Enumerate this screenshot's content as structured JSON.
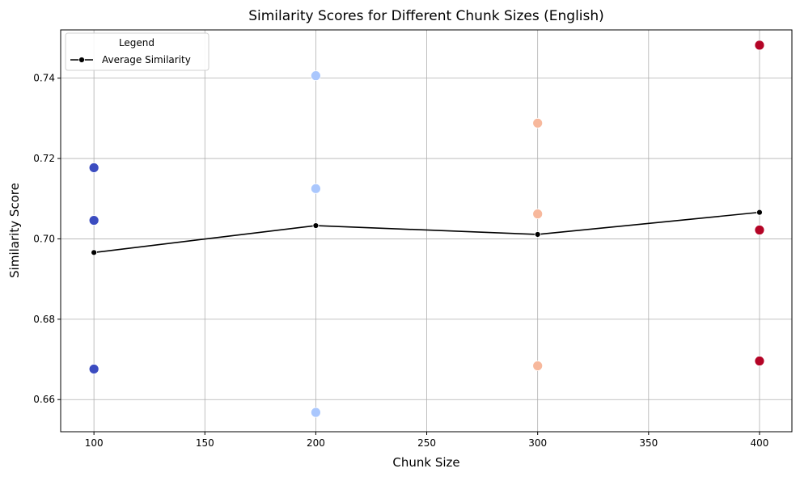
{
  "chart_data": {
    "type": "scatter",
    "title": "Similarity Scores for Different Chunk Sizes (English)",
    "xlabel": "Chunk Size",
    "ylabel": "Similarity Score",
    "xlim": [
      85,
      414.6
    ],
    "ylim": [
      0.652,
      0.752
    ],
    "xticks": [
      100,
      150,
      200,
      250,
      300,
      350,
      400
    ],
    "yticks": [
      0.66,
      0.68,
      0.7,
      0.72,
      0.74
    ],
    "grid": true,
    "legend": {
      "title": "Legend",
      "placement": "top-left",
      "entries": [
        "Average Similarity"
      ]
    },
    "points": [
      {
        "x": 100,
        "ys": [
          0.7177,
          0.7046,
          0.6676
        ],
        "color": "#3b4cc0"
      },
      {
        "x": 200,
        "ys": [
          0.7406,
          0.7125,
          0.6568
        ],
        "color": "#aac7fd"
      },
      {
        "x": 300,
        "ys": [
          0.7288,
          0.7062,
          0.6684
        ],
        "color": "#f7b89c"
      },
      {
        "x": 400,
        "ys": [
          0.7482,
          0.7022,
          0.6696
        ],
        "color": "#b40426"
      }
    ],
    "series": [
      {
        "name": "Average Similarity",
        "x": [
          100,
          200,
          300,
          400
        ],
        "y": [
          0.6966,
          0.7033,
          0.7011,
          0.7066
        ],
        "color": "#000000"
      }
    ]
  }
}
